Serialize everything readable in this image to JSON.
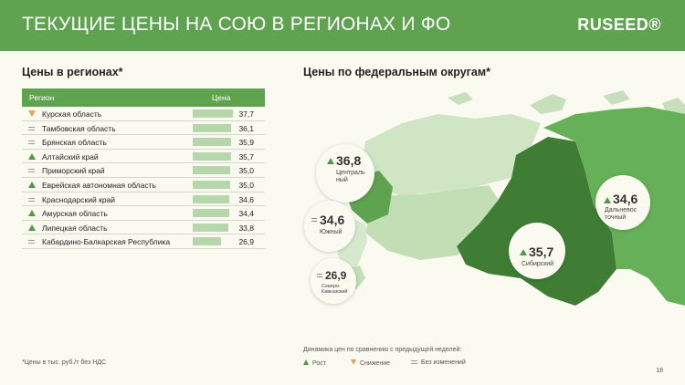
{
  "header": {
    "title": "ТЕКУЩИЕ ЦЕНЫ НА СОЮ В РЕГИОНАХ И ФО",
    "logo": "RUSEED®",
    "bg_color": "#5fa351"
  },
  "regions": {
    "title": "Цены в регионах*",
    "col_region": "Регион",
    "col_price": "Цена",
    "max_value": 37.7,
    "rows": [
      {
        "name": "Курская область",
        "value": "37,7",
        "num": 37.7,
        "trend": "down"
      },
      {
        "name": "Тамбовская область",
        "value": "36,1",
        "num": 36.1,
        "trend": "same"
      },
      {
        "name": "Брянская область",
        "value": "35,9",
        "num": 35.9,
        "trend": "same"
      },
      {
        "name": "Алтайский край",
        "value": "35,7",
        "num": 35.7,
        "trend": "up"
      },
      {
        "name": "Приморский край",
        "value": "35,0",
        "num": 35.0,
        "trend": "same"
      },
      {
        "name": "Еврейская автономная область",
        "value": "35,0",
        "num": 35.0,
        "trend": "up"
      },
      {
        "name": "Краснодарский край",
        "value": "34,6",
        "num": 34.6,
        "trend": "same"
      },
      {
        "name": "Амурская область",
        "value": "34,4",
        "num": 34.4,
        "trend": "up"
      },
      {
        "name": "Липецкая область",
        "value": "33,8",
        "num": 33.8,
        "trend": "up"
      },
      {
        "name": "Кабардино-Балкарская Республика",
        "value": "26,9",
        "num": 26.9,
        "trend": "same"
      }
    ],
    "footnote": "*Цены в тыс. руб./т без НДС"
  },
  "districts": {
    "title": "Цены по федеральным округам*",
    "items": [
      {
        "name": "Централь ный",
        "value": "36,8",
        "trend": "up"
      },
      {
        "name": "Южный",
        "value": "34,6",
        "trend": "same"
      },
      {
        "name": "Северо-Кавказский",
        "value": "26,9",
        "trend": "same"
      },
      {
        "name": "Сибирский",
        "value": "35,7",
        "trend": "up"
      },
      {
        "name": "Дальневос точный",
        "value": "34,6",
        "trend": "up"
      }
    ]
  },
  "legend": {
    "title": "Динамика цен по сравнению с предыдущей неделей:",
    "up": "Рост",
    "down": "Снижение",
    "same": "Без изменений"
  },
  "page_number": "18"
}
